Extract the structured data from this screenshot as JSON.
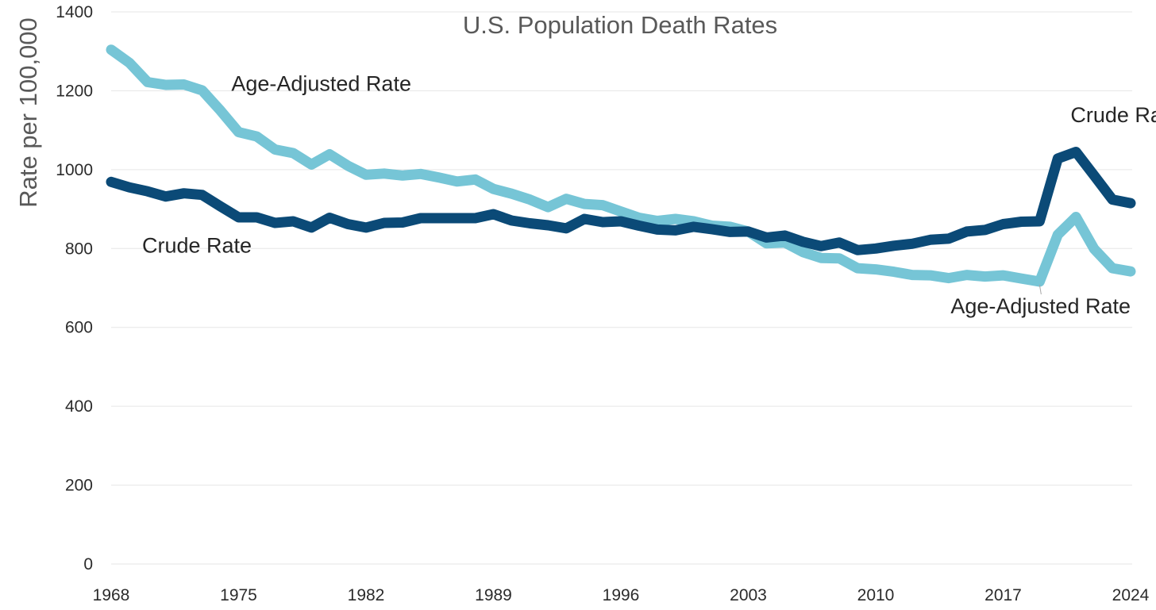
{
  "chart_data": {
    "type": "line",
    "title": "U.S. Population Death Rates",
    "xlabel": "",
    "ylabel": "Rate per 100,000",
    "xlim": [
      1968,
      2024
    ],
    "ylim": [
      0,
      1400
    ],
    "y_ticks": [
      0,
      200,
      400,
      600,
      800,
      1000,
      1200,
      1400
    ],
    "x_ticks": [
      1968,
      1975,
      1982,
      1989,
      1996,
      2003,
      2010,
      2017,
      2024
    ],
    "grid": true,
    "legend": "none (inline series labels)",
    "x": [
      1968,
      1969,
      1970,
      1971,
      1972,
      1973,
      1974,
      1975,
      1976,
      1977,
      1978,
      1979,
      1980,
      1981,
      1982,
      1983,
      1984,
      1985,
      1986,
      1987,
      1988,
      1989,
      1990,
      1991,
      1992,
      1993,
      1994,
      1995,
      1996,
      1997,
      1998,
      1999,
      2000,
      2001,
      2002,
      2003,
      2004,
      2005,
      2006,
      2007,
      2008,
      2009,
      2010,
      2011,
      2012,
      2013,
      2014,
      2015,
      2016,
      2017,
      2018,
      2019,
      2020,
      2021,
      2022,
      2023,
      2024
    ],
    "series": [
      {
        "name": "Age-Adjusted Rate",
        "color": "#76c5d6",
        "values": [
          1304,
          1271,
          1222,
          1215,
          1216,
          1201,
          1150,
          1095,
          1084,
          1051,
          1042,
          1013,
          1039,
          1010,
          987,
          990,
          985,
          989,
          980,
          970,
          975,
          951,
          939,
          924,
          905,
          926,
          913,
          910,
          894,
          878,
          870,
          875,
          869,
          858,
          855,
          843,
          813,
          815,
          791,
          776,
          775,
          750,
          747,
          741,
          733,
          732,
          725,
          733,
          729,
          732,
          724,
          716,
          835,
          880,
          799,
          750,
          742
        ],
        "annotations": [
          {
            "text": "Age-Adjusted Rate",
            "x": 1974.6,
            "y": 1200,
            "anchor": "start"
          },
          {
            "text": "Age-Adjusted Rate",
            "x": 2024,
            "y": 636,
            "anchor": "end"
          }
        ]
      },
      {
        "name": "Crude Rate",
        "color": "#0b4a77",
        "values": [
          969,
          955,
          945,
          932,
          940,
          936,
          907,
          879,
          879,
          865,
          869,
          853,
          878,
          862,
          853,
          865,
          866,
          877,
          877,
          877,
          877,
          887,
          871,
          864,
          859,
          851,
          875,
          867,
          869,
          858,
          848,
          846,
          855,
          849,
          842,
          843,
          828,
          833,
          817,
          806,
          815,
          796,
          800,
          807,
          812,
          822,
          825,
          843,
          847,
          862,
          868,
          869,
          1028,
          1045,
          985,
          924,
          915
        ],
        "annotations": [
          {
            "text": "Crude Rate",
            "x": 2020.7,
            "y": 1120,
            "anchor": "start"
          },
          {
            "text": "Crude Rate",
            "x": 1969.7,
            "y": 790,
            "anchor": "start"
          }
        ]
      }
    ]
  }
}
